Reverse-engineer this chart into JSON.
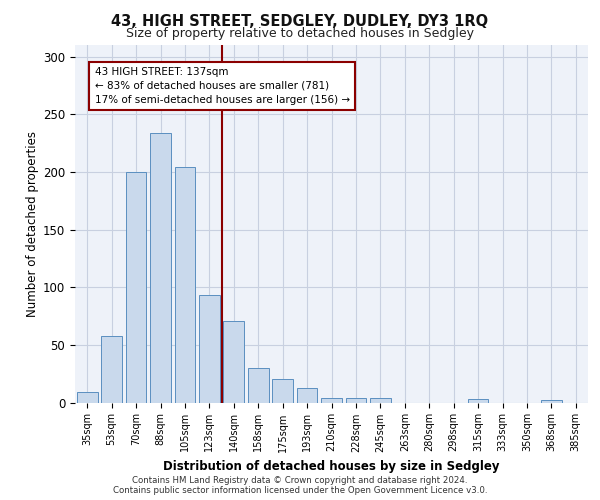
{
  "title": "43, HIGH STREET, SEDGLEY, DUDLEY, DY3 1RQ",
  "subtitle": "Size of property relative to detached houses in Sedgley",
  "xlabel": "Distribution of detached houses by size in Sedgley",
  "ylabel": "Number of detached properties",
  "bar_labels": [
    "35sqm",
    "53sqm",
    "70sqm",
    "88sqm",
    "105sqm",
    "123sqm",
    "140sqm",
    "158sqm",
    "175sqm",
    "193sqm",
    "210sqm",
    "228sqm",
    "245sqm",
    "263sqm",
    "280sqm",
    "298sqm",
    "315sqm",
    "333sqm",
    "350sqm",
    "368sqm",
    "385sqm"
  ],
  "bar_values": [
    9,
    58,
    200,
    234,
    204,
    93,
    71,
    30,
    20,
    13,
    4,
    4,
    4,
    0,
    0,
    0,
    3,
    0,
    0,
    2,
    0
  ],
  "bar_color": "#c9d9ec",
  "bar_edge_color": "#5a8fc0",
  "highlight_line_color": "#8b0000",
  "annotation_text": "43 HIGH STREET: 137sqm\n← 83% of detached houses are smaller (781)\n17% of semi-detached houses are larger (156) →",
  "annotation_box_color": "#8b0000",
  "ylim": [
    0,
    310
  ],
  "yticks": [
    0,
    50,
    100,
    150,
    200,
    250,
    300
  ],
  "grid_color": "#c8d0e0",
  "bg_color": "#eef2f9",
  "footer1": "Contains HM Land Registry data © Crown copyright and database right 2024.",
  "footer2": "Contains public sector information licensed under the Open Government Licence v3.0."
}
